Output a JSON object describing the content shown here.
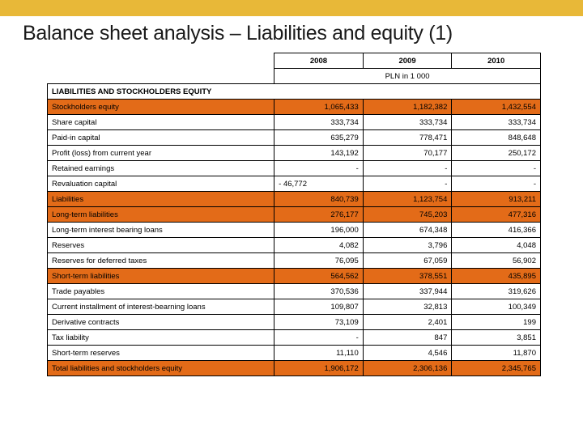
{
  "colors": {
    "top_bar": "#e8b838",
    "highlight_row": "#e36b18",
    "border": "#000000",
    "background": "#ffffff",
    "text": "#000000"
  },
  "title": "Balance sheet analysis – Liabilities  and equity (1)",
  "years": [
    "2008",
    "2009",
    "2010"
  ],
  "unit_label": "PLN in 1 000",
  "section_header": "LIABILITIES AND STOCKHOLDERS EQUITY",
  "rows": [
    {
      "label": "Stockholders equity",
      "values": [
        "1,065,433",
        "1,182,382",
        "1,432,554"
      ],
      "highlight": true
    },
    {
      "label": "Share capital",
      "values": [
        "333,734",
        "333,734",
        "333,734"
      ],
      "highlight": false
    },
    {
      "label": "Paid-in capital",
      "values": [
        "635,279",
        "778,471",
        "848,648"
      ],
      "highlight": false
    },
    {
      "label": "Profit (loss) from current year",
      "values": [
        "143,192",
        "70,177",
        "250,172"
      ],
      "highlight": false
    },
    {
      "label": "Retained earnings",
      "values": [
        "-",
        "-",
        "-"
      ],
      "highlight": false
    },
    {
      "label": "Revaluation capital",
      "values": [
        "-   46,772",
        "-",
        "-"
      ],
      "highlight": false,
      "neg0": true
    },
    {
      "label": "Liabilities",
      "values": [
        "840,739",
        "1,123,754",
        "913,211"
      ],
      "highlight": true
    },
    {
      "label": "Long-term liabilities",
      "values": [
        "276,177",
        "745,203",
        "477,316"
      ],
      "highlight": true
    },
    {
      "label": "Long-term interest bearing loans",
      "values": [
        "196,000",
        "674,348",
        "416,366"
      ],
      "highlight": false
    },
    {
      "label": "Reserves",
      "values": [
        "4,082",
        "3,796",
        "4,048"
      ],
      "highlight": false
    },
    {
      "label": "Reserves for deferred taxes",
      "values": [
        "76,095",
        "67,059",
        "56,902"
      ],
      "highlight": false
    },
    {
      "label": "Short-term liabilities",
      "values": [
        "564,562",
        "378,551",
        "435,895"
      ],
      "highlight": true
    },
    {
      "label": "Trade payables",
      "values": [
        "370,536",
        "337,944",
        "319,626"
      ],
      "highlight": false
    },
    {
      "label": "Current installment of interest-bearning loans",
      "values": [
        "109,807",
        "32,813",
        "100,349"
      ],
      "highlight": false
    },
    {
      "label": "Derivative contracts",
      "values": [
        "73,109",
        "2,401",
        "199"
      ],
      "highlight": false
    },
    {
      "label": "Tax liability",
      "values": [
        "-",
        "847",
        "3,851"
      ],
      "highlight": false
    },
    {
      "label": "Short-term reserves",
      "values": [
        "11,110",
        "4,546",
        "11,870"
      ],
      "highlight": false
    },
    {
      "label": "Total liabilities and stockholders equity",
      "values": [
        "1,906,172",
        "2,306,136",
        "2,345,765"
      ],
      "highlight": true
    }
  ]
}
